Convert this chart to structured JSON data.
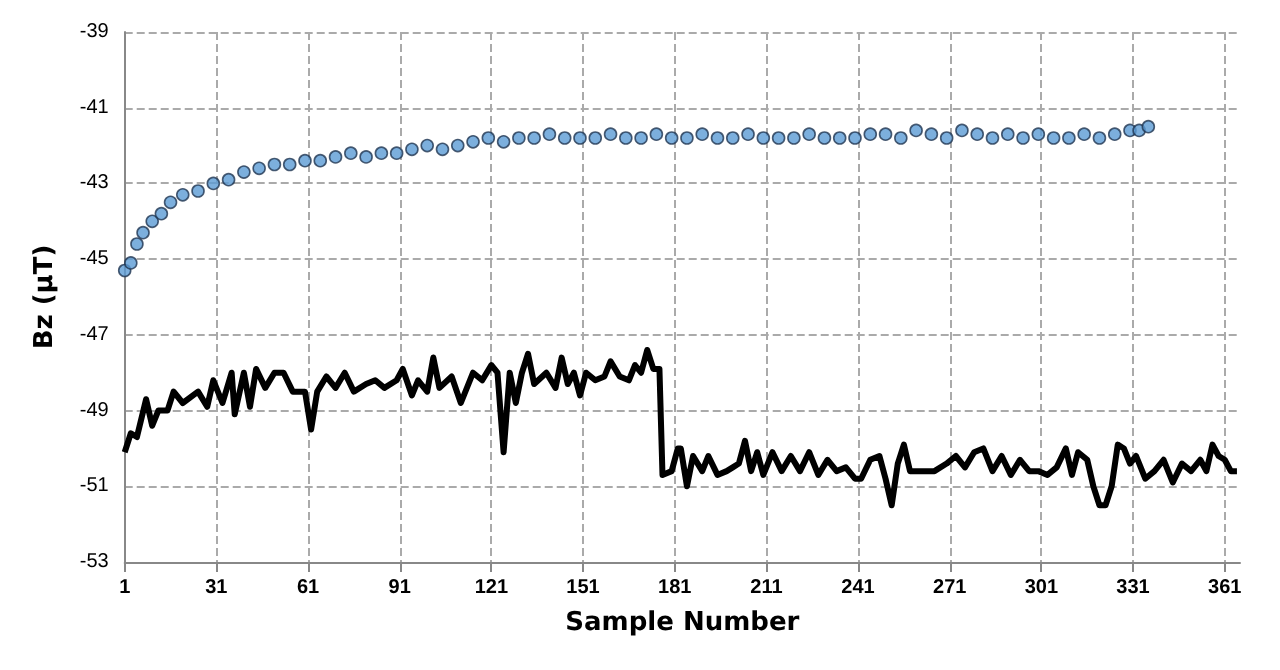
{
  "chart_data": {
    "type": "scatter",
    "xlabel": "Sample Number",
    "ylabel": "Bz (μT)",
    "xlim": [
      1,
      366
    ],
    "ylim": [
      -53,
      -39
    ],
    "xticks": [
      1,
      31,
      61,
      91,
      121,
      151,
      181,
      211,
      241,
      271,
      301,
      331,
      361
    ],
    "yticks": [
      -53,
      -51,
      -49,
      -47,
      -45,
      -43,
      -41,
      -39
    ],
    "grid": true,
    "series": [
      {
        "marker": "circle",
        "color": "#5b9bd5",
        "x": [
          1,
          3,
          5,
          7,
          10,
          13,
          16,
          20,
          25,
          30,
          35,
          40,
          45,
          50,
          55,
          60,
          65,
          70,
          75,
          80,
          85,
          90,
          95,
          100,
          105,
          110,
          115,
          120,
          125,
          130,
          135,
          140,
          145,
          150,
          155,
          160,
          165,
          170,
          175,
          180,
          185,
          190,
          195,
          200,
          205,
          210,
          215,
          220,
          225,
          230,
          235,
          240,
          245,
          250,
          255,
          260,
          265,
          270,
          275,
          280,
          285,
          290,
          295,
          300,
          305,
          310,
          315,
          320,
          325,
          330,
          333,
          336
        ],
        "values": [
          -45.3,
          -45.1,
          -44.6,
          -44.3,
          -44.0,
          -43.8,
          -43.5,
          -43.3,
          -43.2,
          -43.0,
          -42.9,
          -42.7,
          -42.6,
          -42.5,
          -42.5,
          -42.4,
          -42.4,
          -42.3,
          -42.2,
          -42.3,
          -42.2,
          -42.2,
          -42.1,
          -42.0,
          -42.1,
          -42.0,
          -41.9,
          -41.8,
          -41.9,
          -41.8,
          -41.8,
          -41.7,
          -41.8,
          -41.8,
          -41.8,
          -41.7,
          -41.8,
          -41.8,
          -41.7,
          -41.8,
          -41.8,
          -41.7,
          -41.8,
          -41.8,
          -41.7,
          -41.8,
          -41.8,
          -41.8,
          -41.7,
          -41.8,
          -41.8,
          -41.8,
          -41.7,
          -41.7,
          -41.8,
          -41.6,
          -41.7,
          -41.8,
          -41.6,
          -41.7,
          -41.8,
          -41.7,
          -41.8,
          -41.7,
          -41.8,
          -41.8,
          -41.7,
          -41.8,
          -41.7,
          -41.6,
          -41.6,
          -41.5
        ]
      },
      {
        "type": "line",
        "marker": "none",
        "line_style": "solid",
        "color": "#000000",
        "x": [
          1,
          3,
          5,
          8,
          10,
          12,
          15,
          17,
          20,
          25,
          28,
          30,
          33,
          36,
          37,
          40,
          42,
          44,
          47,
          50,
          53,
          56,
          60,
          62,
          64,
          67,
          70,
          73,
          76,
          80,
          83,
          86,
          90,
          92,
          95,
          97,
          100,
          102,
          104,
          108,
          111,
          115,
          118,
          121,
          123,
          125,
          127,
          129,
          131,
          133,
          135,
          139,
          142,
          144,
          146,
          148,
          150,
          152,
          155,
          158,
          160,
          163,
          166,
          168,
          170,
          172,
          174,
          176,
          177,
          180,
          182,
          183,
          185,
          187,
          190,
          192,
          195,
          198,
          200,
          202,
          204,
          206,
          208,
          210,
          213,
          216,
          219,
          222,
          225,
          228,
          231,
          234,
          237,
          240,
          242,
          245,
          248,
          250,
          252,
          254,
          256,
          258,
          262,
          266,
          270,
          273,
          276,
          279,
          282,
          285,
          288,
          291,
          294,
          297,
          300,
          303,
          306,
          309,
          311,
          313,
          316,
          318,
          320,
          322,
          324,
          326,
          328,
          330,
          332,
          335,
          338,
          341,
          344,
          347,
          350,
          353,
          355,
          357,
          359,
          361,
          363,
          365
        ],
        "values": [
          -50.1,
          -49.6,
          -49.7,
          -48.7,
          -49.4,
          -49.0,
          -49.0,
          -48.5,
          -48.8,
          -48.5,
          -48.9,
          -48.2,
          -48.8,
          -48.0,
          -49.1,
          -48.0,
          -48.9,
          -47.9,
          -48.4,
          -48.0,
          -48.0,
          -48.5,
          -48.5,
          -49.5,
          -48.5,
          -48.1,
          -48.4,
          -48.0,
          -48.5,
          -48.3,
          -48.2,
          -48.4,
          -48.2,
          -47.9,
          -48.6,
          -48.2,
          -48.5,
          -47.6,
          -48.4,
          -48.1,
          -48.8,
          -48.0,
          -48.2,
          -47.8,
          -48.0,
          -50.1,
          -48.0,
          -48.8,
          -48.0,
          -47.5,
          -48.3,
          -48.0,
          -48.4,
          -47.6,
          -48.3,
          -48.0,
          -48.6,
          -48.0,
          -48.2,
          -48.1,
          -47.7,
          -48.1,
          -48.2,
          -47.8,
          -48.0,
          -47.4,
          -47.9,
          -47.9,
          -50.7,
          -50.6,
          -50.0,
          -50.0,
          -51.0,
          -50.2,
          -50.6,
          -50.2,
          -50.7,
          -50.6,
          -50.5,
          -50.4,
          -49.8,
          -50.6,
          -50.1,
          -50.7,
          -50.1,
          -50.6,
          -50.2,
          -50.6,
          -50.1,
          -50.7,
          -50.3,
          -50.6,
          -50.5,
          -50.8,
          -50.8,
          -50.3,
          -50.2,
          -50.8,
          -51.5,
          -50.4,
          -49.9,
          -50.6,
          -50.6,
          -50.6,
          -50.4,
          -50.2,
          -50.5,
          -50.1,
          -50.0,
          -50.6,
          -50.2,
          -50.7,
          -50.3,
          -50.6,
          -50.6,
          -50.7,
          -50.5,
          -50.0,
          -50.7,
          -50.1,
          -50.3,
          -51.0,
          -51.5,
          -51.5,
          -51.0,
          -49.9,
          -50.0,
          -50.4,
          -50.2,
          -50.8,
          -50.6,
          -50.3,
          -50.9,
          -50.4,
          -50.6,
          -50.3,
          -50.6,
          -49.9,
          -50.2,
          -50.3,
          -50.6,
          -50.6
        ]
      }
    ]
  }
}
